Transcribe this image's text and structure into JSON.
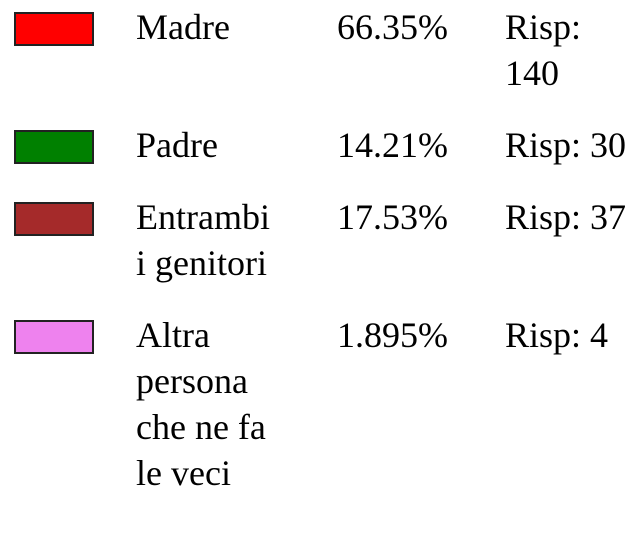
{
  "rows": [
    {
      "label": "Madre",
      "percent": "66.35%",
      "count": "Risp: 140",
      "color": "#ff0000"
    },
    {
      "label": "Padre",
      "percent": "14.21%",
      "count": "Risp: 30",
      "color": "#008000"
    },
    {
      "label": "Entrambi i genitori",
      "percent": "17.53%",
      "count": "Risp: 37",
      "color": "#a52a2a"
    },
    {
      "label": "Altra persona che ne fa le veci",
      "percent": "1.895%",
      "count": "Risp: 4",
      "color": "#ee82ee"
    }
  ]
}
